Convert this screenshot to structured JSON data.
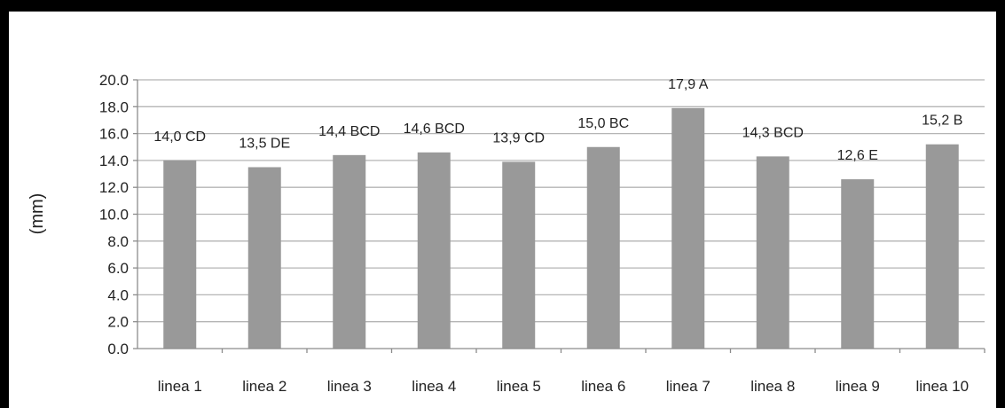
{
  "chart_data": {
    "type": "bar",
    "categories": [
      "linea 1",
      "linea 2",
      "linea 3",
      "linea 4",
      "linea 5",
      "linea 6",
      "linea 7",
      "linea 8",
      "linea 9",
      "linea 10"
    ],
    "values": [
      14.0,
      13.5,
      14.4,
      14.6,
      13.9,
      15.0,
      17.9,
      14.3,
      12.6,
      15.2
    ],
    "data_labels": [
      "14,0 CD",
      "13,5 DE",
      "14,4 BCD",
      "14,6 BCD",
      "13,9 CD",
      "15,0 BC",
      "17,9 A",
      "14,3 BCD",
      "12,6 E",
      "15,2 B"
    ],
    "yticks": [
      "0.0",
      "2.0",
      "4.0",
      "6.0",
      "8.0",
      "10.0",
      "12.0",
      "14.0",
      "16.0",
      "18.0",
      "20.0"
    ],
    "ylabel": "(mm)",
    "xlabel": "",
    "title": "",
    "ylim": [
      0,
      20
    ],
    "grid": true,
    "legend": "none",
    "colors": {
      "bar": "#999999",
      "grid": "#b5b5b5",
      "axis": "#8c8c8c"
    }
  }
}
